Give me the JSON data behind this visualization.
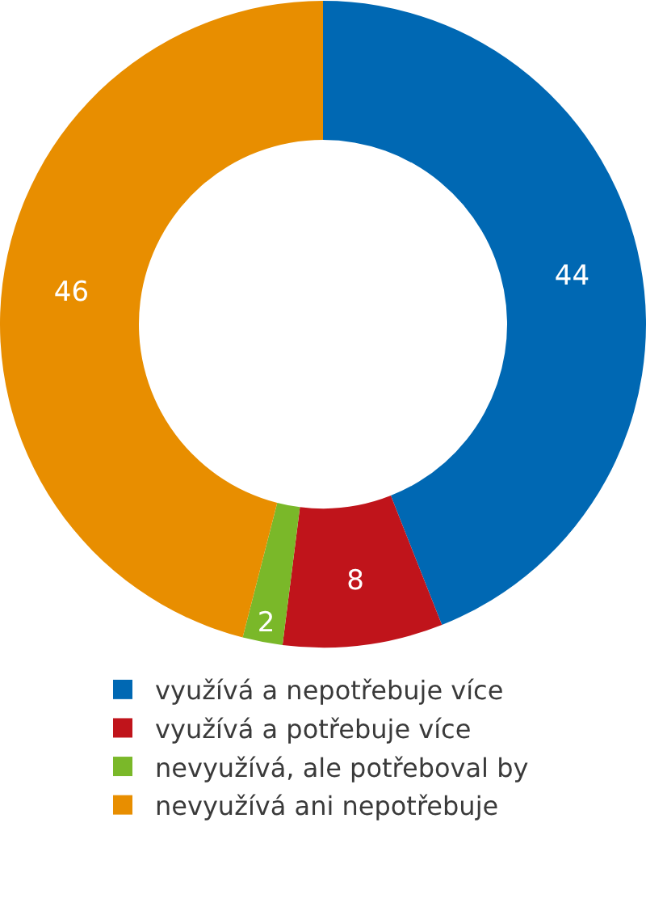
{
  "chart_data": {
    "type": "donut",
    "categories": [
      "využívá a nepotřebuje více",
      "využívá a potřebuje více",
      "nevyužívá, ale potřeboval by",
      "nevyužívá ani nepotřebuje"
    ],
    "values": [
      44,
      8,
      2,
      46
    ],
    "colors": [
      "#0068b3",
      "#c0141b",
      "#7ab829",
      "#e88e00"
    ],
    "data_labels": true,
    "legend": "bottom"
  }
}
